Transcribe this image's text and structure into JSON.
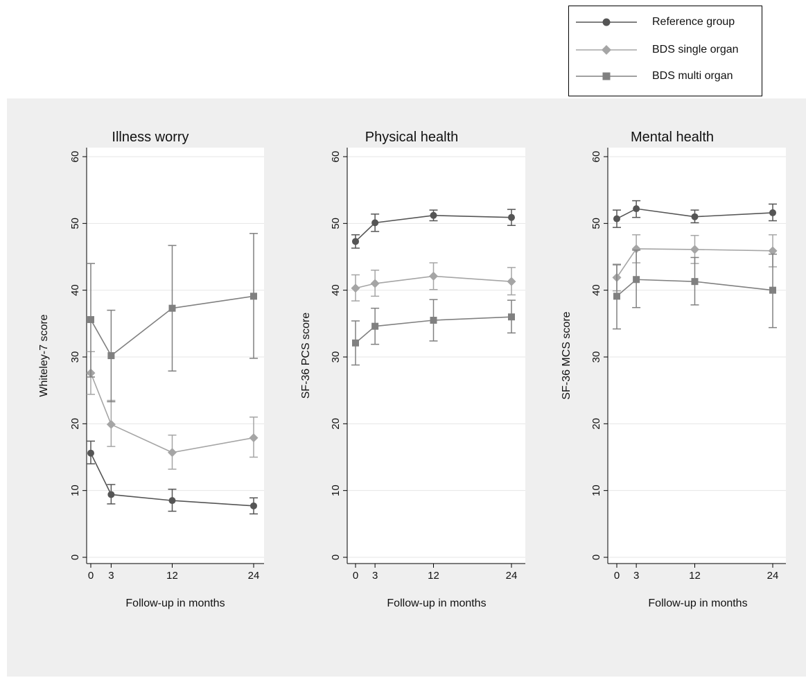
{
  "colors": {
    "reference": "#555555",
    "single": "#a5a5a5",
    "multi": "#808080",
    "panel_bg": "#efefef",
    "grid": "#ffffff"
  },
  "legend": [
    {
      "label": "Reference group",
      "marker": "circle",
      "color_key": "reference"
    },
    {
      "label": "BDS single organ",
      "marker": "diamond",
      "color_key": "single"
    },
    {
      "label": "BDS multi organ",
      "marker": "square",
      "color_key": "multi"
    }
  ],
  "chart_data": [
    {
      "type": "line",
      "title": "Illness worry",
      "xlabel": "Follow-up in months",
      "ylabel": "Whiteley-7 score",
      "x": [
        0,
        3,
        12,
        24
      ],
      "xticks": [
        "0",
        "3",
        "12",
        "24"
      ],
      "ylim": [
        0,
        60
      ],
      "yticks": [
        "0",
        "10",
        "20",
        "30",
        "40",
        "50",
        "60"
      ],
      "grid": true,
      "series": [
        {
          "name": "Reference group",
          "values": [
            15.6,
            9.4,
            8.5,
            7.7
          ],
          "lower": [
            14.0,
            8.0,
            6.9,
            6.5
          ],
          "upper": [
            17.4,
            10.9,
            10.2,
            8.9
          ]
        },
        {
          "name": "BDS single organ",
          "values": [
            27.6,
            19.9,
            15.7,
            17.9
          ],
          "lower": [
            24.4,
            16.6,
            13.2,
            15.0
          ],
          "upper": [
            30.8,
            23.5,
            18.3,
            21.0
          ]
        },
        {
          "name": "BDS multi organ",
          "values": [
            35.6,
            30.2,
            37.3,
            39.1
          ],
          "lower": [
            27.0,
            23.3,
            27.9,
            29.8
          ],
          "upper": [
            44.0,
            37.0,
            46.7,
            48.5
          ]
        }
      ]
    },
    {
      "type": "line",
      "title": "Physical health",
      "xlabel": "Follow-up in months",
      "ylabel": "SF-36 PCS score",
      "x": [
        0,
        3,
        12,
        24
      ],
      "xticks": [
        "0",
        "3",
        "12",
        "24"
      ],
      "ylim": [
        0,
        60
      ],
      "yticks": [
        "0",
        "10",
        "20",
        "30",
        "40",
        "50",
        "60"
      ],
      "grid": true,
      "series": [
        {
          "name": "Reference group",
          "values": [
            47.3,
            50.1,
            51.2,
            50.9
          ],
          "lower": [
            46.3,
            48.8,
            50.4,
            49.7
          ],
          "upper": [
            48.3,
            51.4,
            52.0,
            52.1
          ]
        },
        {
          "name": "BDS single organ",
          "values": [
            40.3,
            41.0,
            42.1,
            41.3
          ],
          "lower": [
            38.4,
            39.1,
            40.1,
            39.3
          ],
          "upper": [
            42.3,
            43.0,
            44.1,
            43.4
          ]
        },
        {
          "name": "BDS multi organ",
          "values": [
            32.1,
            34.6,
            35.5,
            36.0
          ],
          "lower": [
            28.8,
            31.9,
            32.4,
            33.6
          ],
          "upper": [
            35.4,
            37.3,
            38.6,
            38.5
          ]
        }
      ]
    },
    {
      "type": "line",
      "title": "Mental health",
      "xlabel": "Follow-up in months",
      "ylabel": "SF-36 MCS score",
      "x": [
        0,
        3,
        12,
        24
      ],
      "xticks": [
        "0",
        "3",
        "12",
        "24"
      ],
      "ylim": [
        0,
        60
      ],
      "yticks": [
        "0",
        "10",
        "20",
        "30",
        "40",
        "50",
        "60"
      ],
      "grid": true,
      "series": [
        {
          "name": "Reference group",
          "values": [
            50.7,
            52.2,
            51.0,
            51.6
          ],
          "lower": [
            49.4,
            50.9,
            50.1,
            50.4
          ],
          "upper": [
            52.0,
            53.4,
            52.0,
            52.9
          ]
        },
        {
          "name": "BDS single organ",
          "values": [
            41.9,
            46.2,
            46.1,
            45.9
          ],
          "lower": [
            39.9,
            44.1,
            44.0,
            43.5
          ],
          "upper": [
            43.9,
            48.3,
            48.2,
            48.3
          ]
        },
        {
          "name": "BDS multi organ",
          "values": [
            39.1,
            41.6,
            41.3,
            40.0
          ],
          "lower": [
            34.2,
            37.4,
            37.8,
            34.4
          ],
          "upper": [
            43.8,
            46.0,
            44.9,
            45.4
          ]
        }
      ]
    }
  ]
}
